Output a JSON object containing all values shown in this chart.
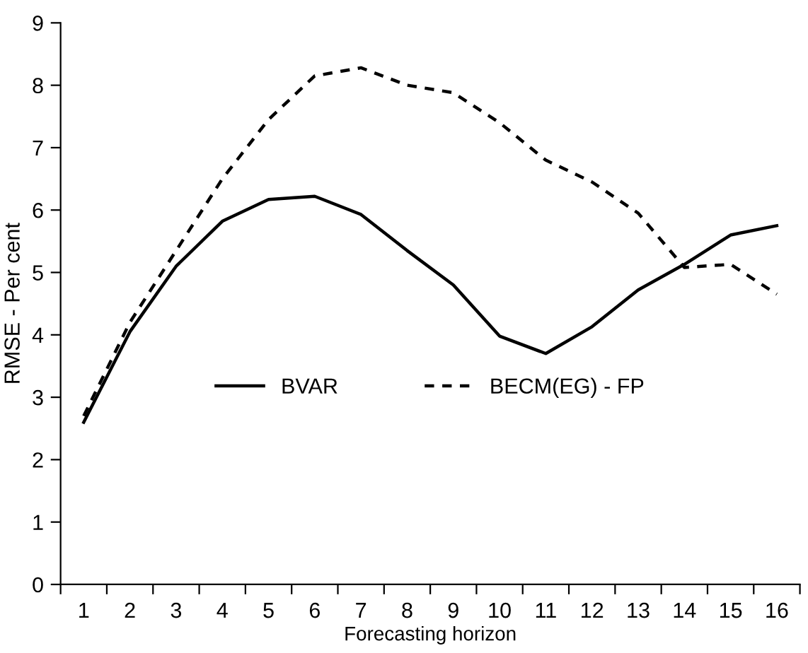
{
  "chart_data": {
    "type": "line",
    "xlabel": "Forecasting horizon",
    "ylabel": "RMSE - Per cent",
    "categories": [
      "1",
      "2",
      "3",
      "4",
      "5",
      "6",
      "7",
      "8",
      "9",
      "10",
      "11",
      "12",
      "13",
      "14",
      "15",
      "16"
    ],
    "series": [
      {
        "name": "BVAR",
        "color": "#000000",
        "line_style": "solid",
        "values": [
          2.6,
          4.05,
          5.1,
          5.82,
          6.17,
          6.22,
          5.93,
          5.35,
          4.8,
          3.98,
          3.7,
          4.13,
          4.72,
          5.13,
          5.6,
          5.75
        ]
      },
      {
        "name": "BECM(EG) - FP",
        "color": "#000000",
        "line_style": "dashed",
        "values": [
          2.7,
          4.2,
          5.35,
          6.5,
          7.45,
          8.15,
          8.28,
          8.0,
          7.88,
          7.4,
          6.8,
          6.45,
          5.95,
          5.08,
          5.13,
          4.65
        ]
      }
    ],
    "ylim": [
      0,
      9
    ],
    "yticks": [
      0,
      1,
      2,
      3,
      4,
      5,
      6,
      7,
      8,
      9
    ],
    "grid": false,
    "legend": "center",
    "marker": "none"
  }
}
